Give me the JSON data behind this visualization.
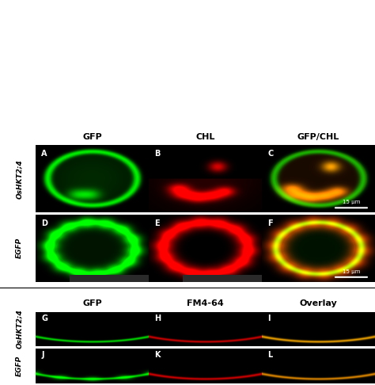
{
  "col_headers": [
    "GFP",
    "CHL",
    "GFP/CHL"
  ],
  "col_headers2": [
    "GFP",
    "FM4-64",
    "Overlay"
  ],
  "row_labels_top": [
    "OsHKT2;4",
    "EGFP"
  ],
  "row_labels_bottom": [
    "OsHKT2;4",
    "EGFP"
  ],
  "panel_labels": [
    "A",
    "B",
    "C",
    "D",
    "E",
    "F",
    "G",
    "H",
    "I",
    "J",
    "K",
    "L"
  ],
  "scale_bar_text": "15 μm",
  "bg_color": "#000000",
  "fig_bg": "#ffffff"
}
